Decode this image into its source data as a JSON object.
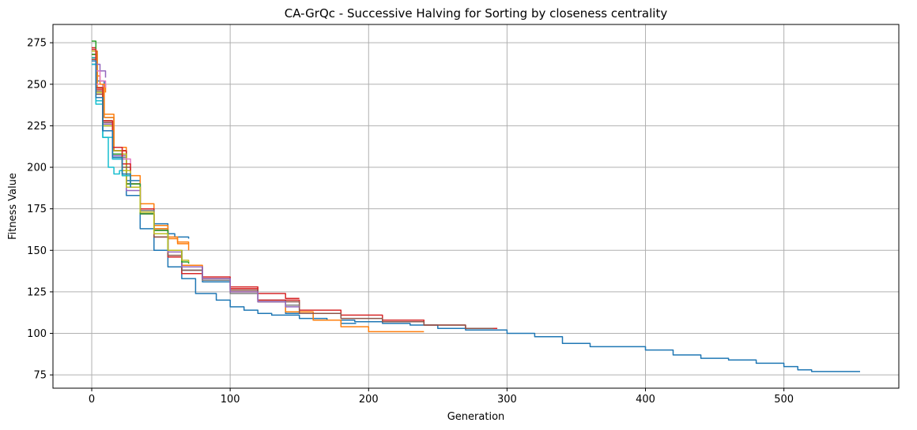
{
  "chart_data": {
    "type": "line",
    "title": "CA-GrQc - Successive Halving for Sorting by closeness centrality",
    "xlabel": "Generation",
    "ylabel": "Fitness Value",
    "xlim": [
      -28,
      583
    ],
    "ylim": [
      67,
      286
    ],
    "xticks": [
      0,
      100,
      200,
      300,
      400,
      500
    ],
    "yticks": [
      75,
      100,
      125,
      150,
      175,
      200,
      225,
      250,
      275
    ],
    "grid": true,
    "legend": "none",
    "series": [
      {
        "color": "#1f77b4",
        "x": [
          0,
          3,
          8,
          15,
          25,
          35,
          45,
          55,
          65,
          75,
          90,
          100,
          110,
          120,
          130,
          150,
          170,
          190,
          210,
          230,
          250,
          270,
          300,
          320,
          340,
          360,
          380,
          400,
          420,
          440,
          460,
          480,
          500,
          510,
          520,
          555
        ],
        "y": [
          262,
          240,
          222,
          205,
          183,
          163,
          150,
          140,
          133,
          124,
          120,
          116,
          114,
          112,
          111,
          109,
          108,
          107,
          106,
          105,
          103,
          102,
          100,
          98,
          94,
          92,
          92,
          90,
          87,
          85,
          84,
          82,
          80,
          78,
          77,
          77
        ]
      },
      {
        "color": "#1f77b4",
        "x": [
          0,
          3,
          8,
          15,
          25,
          35,
          45,
          55,
          65,
          80,
          100,
          120,
          140,
          160,
          180,
          191
        ],
        "y": [
          265,
          248,
          228,
          210,
          190,
          175,
          163,
          150,
          138,
          131,
          126,
          120,
          112,
          108,
          106,
          106
        ]
      },
      {
        "color": "#1f77b4",
        "x": [
          0,
          4,
          9,
          16,
          25,
          35,
          45,
          55,
          60,
          70
        ],
        "y": [
          270,
          252,
          230,
          210,
          192,
          175,
          166,
          160,
          158,
          157
        ]
      },
      {
        "color": "#ff7f0e",
        "x": [
          0,
          3,
          8,
          15,
          25,
          35,
          45,
          55,
          65,
          80,
          100,
          120,
          140,
          160,
          180,
          200,
          220,
          240
        ],
        "y": [
          268,
          245,
          228,
          210,
          190,
          172,
          160,
          150,
          141,
          133,
          125,
          119,
          113,
          108,
          104,
          101,
          101,
          101
        ]
      },
      {
        "color": "#ff7f0e",
        "x": [
          0,
          4,
          9,
          16,
          25,
          35,
          45,
          55,
          62,
          70
        ],
        "y": [
          270,
          248,
          230,
          212,
          190,
          178,
          165,
          158,
          154,
          150
        ]
      },
      {
        "color": "#ff7f0e",
        "x": [
          0,
          4,
          9,
          16,
          25,
          35,
          45,
          55,
          62,
          70
        ],
        "y": [
          268,
          250,
          232,
          210,
          195,
          174,
          163,
          157,
          155,
          154
        ]
      },
      {
        "color": "#d62728",
        "x": [
          0,
          3,
          8,
          15,
          25,
          35,
          45,
          55,
          65,
          80,
          100,
          120,
          140,
          150
        ],
        "y": [
          270,
          245,
          225,
          208,
          188,
          172,
          158,
          146,
          136,
          132,
          128,
          124,
          121,
          121
        ]
      },
      {
        "color": "#d62728",
        "x": [
          0,
          3,
          8,
          15,
          25,
          35,
          45,
          55,
          65,
          80,
          100,
          120,
          150,
          180,
          210,
          240,
          270,
          293
        ],
        "y": [
          272,
          247,
          228,
          210,
          190,
          175,
          162,
          150,
          140,
          134,
          127,
          120,
          114,
          111,
          108,
          105,
          103,
          103
        ]
      },
      {
        "color": "#8c564b",
        "x": [
          0,
          3,
          8,
          15,
          25,
          35,
          45,
          55,
          65,
          80,
          100,
          120,
          150,
          180,
          210,
          240,
          270,
          290
        ],
        "y": [
          266,
          246,
          227,
          208,
          190,
          172,
          158,
          147,
          138,
          133,
          126,
          119,
          112,
          109,
          107,
          105,
          103,
          103
        ]
      },
      {
        "color": "#7f7f7f",
        "x": [
          0,
          3,
          8,
          15,
          25,
          35,
          45,
          55,
          65,
          80,
          100,
          120,
          140,
          150
        ],
        "y": [
          265,
          244,
          225,
          206,
          188,
          174,
          162,
          150,
          140,
          132,
          124,
          119,
          117,
          117
        ]
      },
      {
        "color": "#9467bd",
        "x": [
          0,
          3,
          8,
          15,
          25,
          35,
          45,
          55,
          65,
          80,
          100,
          120,
          140,
          150
        ],
        "y": [
          266,
          245,
          226,
          207,
          186,
          172,
          160,
          149,
          140,
          133,
          125,
          119,
          116,
          116
        ]
      },
      {
        "color": "#2ca02c",
        "x": [
          0,
          3,
          8,
          15,
          25,
          35,
          45,
          55,
          65,
          70
        ],
        "y": [
          276,
          250,
          228,
          208,
          190,
          172,
          162,
          150,
          143,
          142
        ]
      },
      {
        "color": "#bcbd22",
        "x": [
          0,
          3,
          8,
          15,
          25,
          35,
          45,
          55,
          65,
          70
        ],
        "y": [
          268,
          248,
          228,
          208,
          188,
          173,
          160,
          150,
          144,
          143
        ]
      },
      {
        "color": "#17becf",
        "x": [
          0,
          3,
          8,
          12,
          16,
          20,
          25
        ],
        "y": [
          262,
          240,
          218,
          200,
          196,
          198,
          198
        ]
      },
      {
        "color": "#e377c2",
        "x": [
          0,
          3,
          8,
          15,
          22,
          28
        ],
        "y": [
          270,
          250,
          228,
          212,
          205,
          198
        ]
      },
      {
        "color": "#9467bd",
        "x": [
          0,
          3,
          6,
          10
        ],
        "y": [
          268,
          262,
          258,
          254
        ]
      },
      {
        "color": "#8c564b",
        "x": [
          0,
          3,
          8,
          15,
          22,
          28
        ],
        "y": [
          265,
          244,
          222,
          210,
          200,
          196
        ]
      },
      {
        "color": "#2ca02c",
        "x": [
          0,
          3,
          8,
          15,
          22,
          28
        ],
        "y": [
          268,
          245,
          225,
          208,
          195,
          190
        ]
      },
      {
        "color": "#ff7f0e",
        "x": [
          0,
          3,
          6,
          10
        ],
        "y": [
          266,
          255,
          250,
          245
        ]
      },
      {
        "color": "#17becf",
        "x": [
          0,
          3,
          8,
          15,
          22,
          28
        ],
        "y": [
          266,
          238,
          218,
          205,
          195,
          188
        ]
      },
      {
        "color": "#bcbd22",
        "x": [
          0,
          3,
          8,
          15,
          22,
          28
        ],
        "y": [
          270,
          245,
          225,
          210,
          198,
          190
        ]
      },
      {
        "color": "#d62728",
        "x": [
          0,
          3,
          8,
          15,
          22,
          28
        ],
        "y": [
          271,
          248,
          228,
          212,
          202,
          198
        ]
      },
      {
        "color": "#e377c2",
        "x": [
          0,
          3,
          6,
          10
        ],
        "y": [
          264,
          258,
          252,
          248
        ]
      },
      {
        "color": "#1f77b4",
        "x": [
          0,
          3,
          8,
          15,
          22,
          28
        ],
        "y": [
          264,
          242,
          222,
          206,
          196,
          188
        ]
      }
    ]
  }
}
